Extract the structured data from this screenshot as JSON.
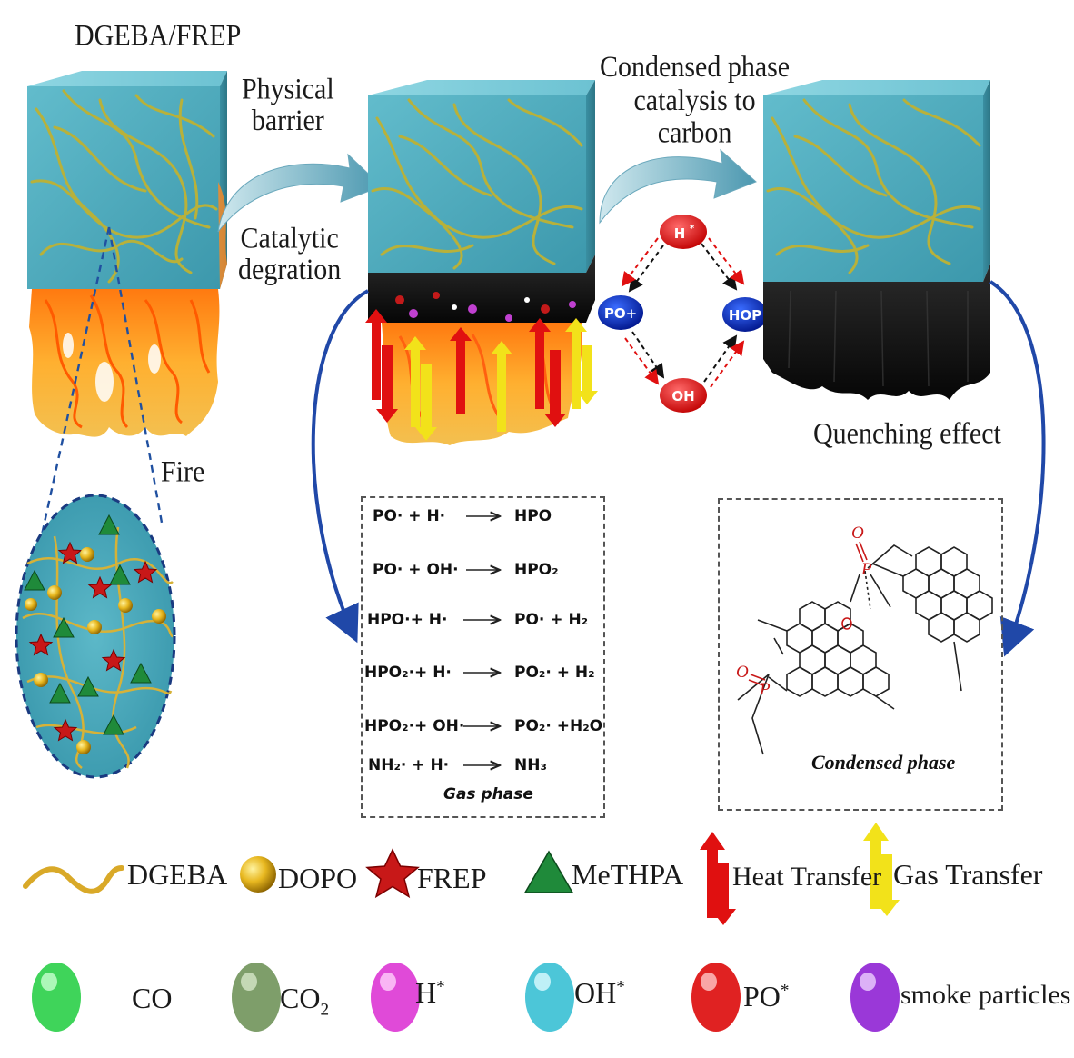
{
  "labels": {
    "material": "DGEBA/FREP",
    "physical_barrier": [
      "Physical",
      "barrier"
    ],
    "catalytic": [
      "Catalytic",
      "degration"
    ],
    "condensed_catalysis": [
      "Condensed phase",
      "catalysis to",
      "carbon"
    ],
    "fire": "Fire",
    "quenching": "Quenching effect"
  },
  "radical_cycle": {
    "top": "H",
    "top_sup": "*",
    "left": "PO+",
    "right": "HOP",
    "bottom": "OH"
  },
  "gas_phase": {
    "caption": "Gas phase",
    "reactions": [
      {
        "left": "PO· + H·",
        "right": "HPO"
      },
      {
        "left": "PO· + OH·",
        "right": "HPO₂"
      },
      {
        "left": "HPO·+ H·",
        "right": "PO·  + H₂"
      },
      {
        "left": "HPO₂·+ H·",
        "right": "PO₂·  + H₂"
      },
      {
        "left": "HPO₂·+ OH·",
        "right": "PO₂·  +H₂O"
      },
      {
        "left": "NH₂· + H·",
        "right": "NH₃"
      }
    ]
  },
  "condensed": {
    "caption": "Condensed phase",
    "atom_o": "O",
    "atom_p": "P"
  },
  "legend_row1": [
    {
      "label": "DGEBA",
      "icon": "wave-icon",
      "color": "#d9a928"
    },
    {
      "label": "DOPO",
      "icon": "gold-sphere-icon",
      "color": "#e0b020"
    },
    {
      "label": "FREP",
      "icon": "star-icon",
      "color": "#c81818"
    },
    {
      "label": "MeTHPA",
      "icon": "triangle-icon",
      "color": "#1f8a3a"
    },
    {
      "label": "Heat Transfer",
      "icon": "heat-arrows-icon",
      "color": "#e01010"
    },
    {
      "label": "Gas Transfer",
      "icon": "gas-arrows-icon",
      "color": "#f2e21a"
    }
  ],
  "legend_row2": [
    {
      "label": "CO",
      "sub": "",
      "sup": "",
      "color": "#3fd45a"
    },
    {
      "label": "CO",
      "sub": "2",
      "sup": "",
      "color": "#7e9e6a"
    },
    {
      "label": "H",
      "sub": "",
      "sup": "*",
      "color": "#e04ad8"
    },
    {
      "label": "OH",
      "sub": "",
      "sup": "*",
      "color": "#4cc6d8"
    },
    {
      "label": "PO",
      "sub": "",
      "sup": "*",
      "color": "#e02222"
    },
    {
      "label": "smoke particles",
      "sub": "",
      "sup": "",
      "color": "#9a38d8"
    }
  ]
}
